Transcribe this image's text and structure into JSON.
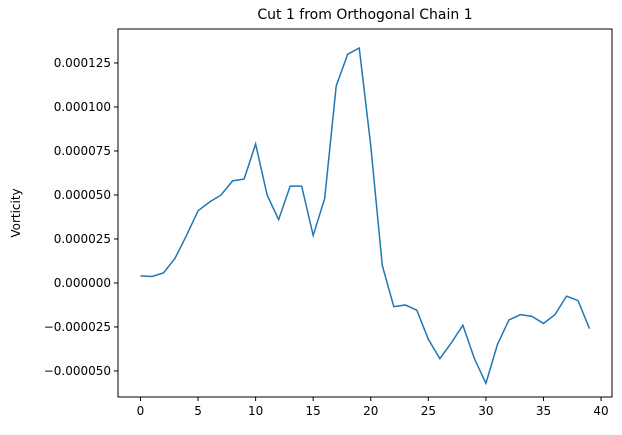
{
  "chart_data": {
    "type": "line",
    "title": "Cut 1 from Orthogonal Chain 1",
    "ylabel": "Vorticity",
    "x": [
      0,
      1,
      2,
      3,
      4,
      5,
      6,
      7,
      8,
      9,
      10,
      11,
      12,
      13,
      14,
      15,
      16,
      17,
      18,
      19,
      20,
      21,
      22,
      23,
      24,
      25,
      26,
      27,
      28,
      29,
      30,
      31,
      32,
      33,
      34,
      35,
      36,
      37,
      38,
      39
    ],
    "series": [
      {
        "color": "#1f77b4",
        "values": [
          4e-06,
          3.7e-06,
          5.7e-06,
          1.4e-05,
          2.7e-05,
          4.1e-05,
          4.6e-05,
          5e-05,
          5.8e-05,
          5.9e-05,
          7.9e-05,
          5e-05,
          3.6e-05,
          5.5e-05,
          5.5e-05,
          2.7e-05,
          4.8e-05,
          0.000112,
          0.00013,
          0.0001335,
          7.8e-05,
          1e-05,
          -1.35e-05,
          -1.25e-05,
          -1.55e-05,
          -3.2e-05,
          -4.3e-05,
          -3.4e-05,
          -2.4e-05,
          -4.3e-05,
          -5.7e-05,
          -3.5e-05,
          -2.1e-05,
          -1.8e-05,
          -1.9e-05,
          -2.3e-05,
          -1.8e-05,
          -7.5e-06,
          -1e-05,
          -2.6e-05
        ]
      }
    ],
    "xlim": [
      -1.95,
      40.95
    ],
    "xticks": [
      0,
      5,
      10,
      15,
      20,
      25,
      30,
      35,
      40
    ],
    "ylim": [
      -6.48e-05,
      0.0001443
    ],
    "yticks": [
      {
        "value": -5e-05,
        "label": "−0.000050"
      },
      {
        "value": -2.5e-05,
        "label": "−0.000025"
      },
      {
        "value": 0,
        "label": "0.000000"
      },
      {
        "value": 2.5e-05,
        "label": "0.000025"
      },
      {
        "value": 5e-05,
        "label": "0.000050"
      },
      {
        "value": 7.5e-05,
        "label": "0.000075"
      },
      {
        "value": 0.0001,
        "label": "0.000100"
      },
      {
        "value": 0.000125,
        "label": "0.000125"
      }
    ]
  }
}
